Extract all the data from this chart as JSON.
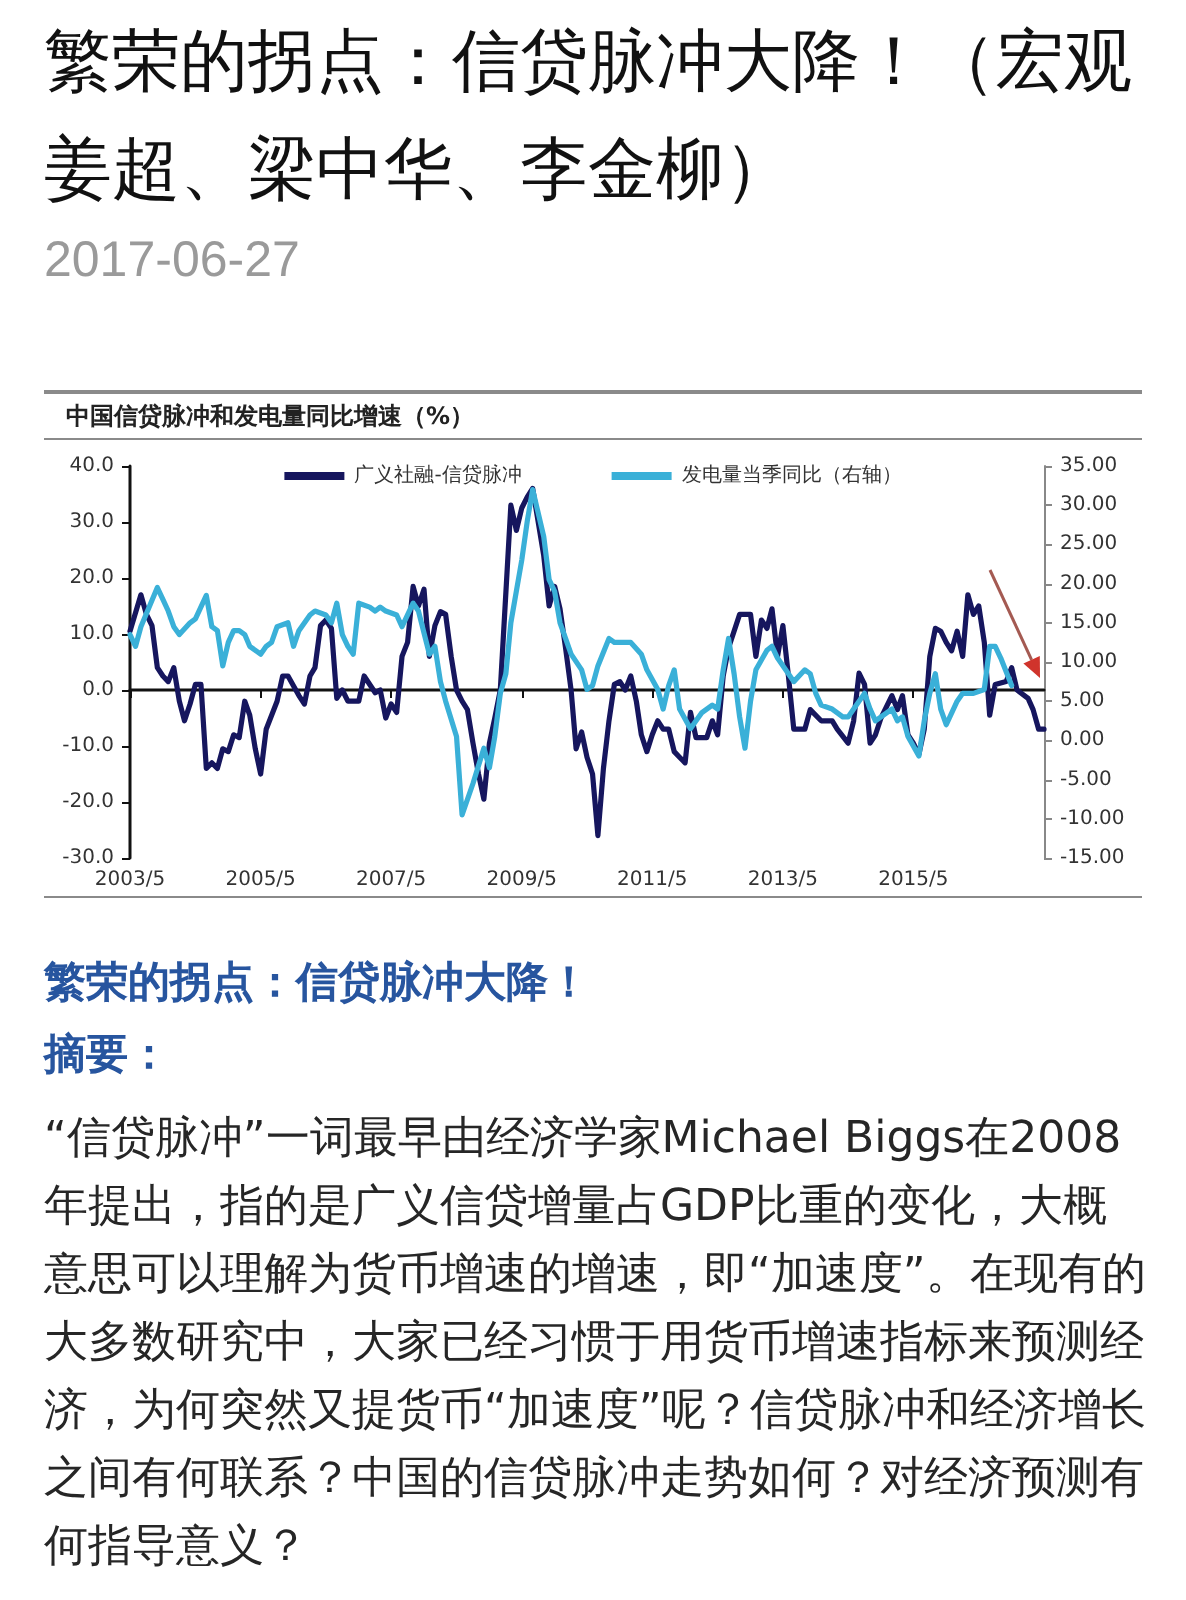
{
  "chart_data": {
    "type": "line",
    "title": "中国信贷脉冲和发电量同比增速（%）",
    "annotations": [
      "繁荣的拐点：信贷脉冲大降！（宏观姜超、梁中华、李金柳）",
      "2017-06-27",
      "繁荣的拐点：信贷脉冲大降！",
      "摘要：",
      "“信贷脉冲”一词最早由经济学家Michael Biggs在2008年提出，指的是广义信贷增量占GDP比重的变化，大概意思可以理解为货币增速的增速，即“加速度”。在现有的大多数研究中，大家已经习惯于用货币增速指标来预测经济，为何突然又提货币“加速度”呢？信贷脉冲和经济增长之间有何联系？中国的信贷脉冲走势如何？对经济预测有何指导意义？"
    ],
    "xlim": [
      "2003-05",
      "2017-05"
    ],
    "xticks": [
      {
        "value": "2003-05",
        "label": "2003/5"
      },
      {
        "value": "2005-05",
        "label": "2005/5"
      },
      {
        "value": "2007-05",
        "label": "2007/5"
      },
      {
        "value": "2009-05",
        "label": "2009/5"
      },
      {
        "value": "2011-05",
        "label": "2011/5"
      },
      {
        "value": "2013-05",
        "label": "2013/5"
      },
      {
        "value": "2015-05",
        "label": "2015/5"
      }
    ],
    "ylim": [
      -30,
      40
    ],
    "yticks": [
      {
        "value": -30,
        "label": "-30.0"
      },
      {
        "value": -20,
        "label": "-20.0"
      },
      {
        "value": -10,
        "label": "-10.0"
      },
      {
        "value": 0,
        "label": "0.0"
      },
      {
        "value": 10,
        "label": "10.0"
      },
      {
        "value": 20,
        "label": "20.0"
      },
      {
        "value": 30,
        "label": "30.0"
      },
      {
        "value": 40,
        "label": "40.0"
      }
    ],
    "y2lim": [
      -15,
      35
    ],
    "y2ticks": [
      {
        "value": -15,
        "label": "-15.00"
      },
      {
        "value": -10,
        "label": "-10.00"
      },
      {
        "value": -5,
        "label": "-5.00"
      },
      {
        "value": 0,
        "label": "0.00"
      },
      {
        "value": 5,
        "label": "5.00"
      },
      {
        "value": 10,
        "label": "10.00"
      },
      {
        "value": 15,
        "label": "15.00"
      },
      {
        "value": 20,
        "label": "20.00"
      },
      {
        "value": 25,
        "label": "25.00"
      },
      {
        "value": 30,
        "label": "30.00"
      },
      {
        "value": 35,
        "label": "35.00"
      }
    ],
    "legend": "top",
    "marker": "none",
    "line_style": "solid",
    "series": [
      {
        "name": "广义社融-信贷脉冲",
        "color": "#16165e",
        "x": [
          "2003-05",
          "2003-07",
          "2003-08",
          "2003-09",
          "2003-10",
          "2003-11",
          "2003-12",
          "2004-01",
          "2004-02",
          "2004-03",
          "2004-04",
          "2004-05",
          "2004-06",
          "2004-07",
          "2004-08",
          "2004-09",
          "2004-10",
          "2004-11",
          "2004-12",
          "2005-01",
          "2005-02",
          "2005-03",
          "2005-04",
          "2005-05",
          "2005-06",
          "2005-08",
          "2005-09",
          "2005-10",
          "2005-12",
          "2006-01",
          "2006-02",
          "2006-03",
          "2006-04",
          "2006-05",
          "2006-06",
          "2006-07",
          "2006-08",
          "2006-09",
          "2006-11",
          "2006-12",
          "2007-02",
          "2007-03",
          "2007-04",
          "2007-05",
          "2007-06",
          "2007-07",
          "2007-08",
          "2007-09",
          "2007-10",
          "2007-11",
          "2007-12",
          "2008-01",
          "2008-02",
          "2008-03",
          "2008-04",
          "2008-05",
          "2008-06",
          "2008-07",
          "2008-08",
          "2008-09",
          "2008-10",
          "2008-11",
          "2008-12",
          "2009-01",
          "2009-03",
          "2009-04",
          "2009-05",
          "2009-06",
          "2009-07",
          "2009-09",
          "2009-10",
          "2009-11",
          "2009-12",
          "2010-01",
          "2010-02",
          "2010-03",
          "2010-04",
          "2010-05",
          "2010-06",
          "2010-07",
          "2010-08",
          "2010-09",
          "2010-10",
          "2010-11",
          "2010-12",
          "2011-01",
          "2011-02",
          "2011-03",
          "2011-04",
          "2011-05",
          "2011-06",
          "2011-07",
          "2011-08",
          "2011-09",
          "2011-10",
          "2011-11",
          "2011-12",
          "2012-01",
          "2012-03",
          "2012-04",
          "2012-05",
          "2012-06",
          "2012-07",
          "2012-09",
          "2012-11",
          "2012-12",
          "2013-01",
          "2013-02",
          "2013-03",
          "2013-04",
          "2013-05",
          "2013-06",
          "2013-07",
          "2013-09",
          "2013-10",
          "2013-12",
          "2014-02",
          "2014-03",
          "2014-05",
          "2014-06",
          "2014-07",
          "2014-08",
          "2014-09",
          "2014-10",
          "2014-11",
          "2015-01",
          "2015-02",
          "2015-03",
          "2015-04",
          "2015-05",
          "2015-06",
          "2015-07",
          "2015-08",
          "2015-09",
          "2015-10",
          "2015-11",
          "2015-12",
          "2016-01",
          "2016-02",
          "2016-03",
          "2016-04",
          "2016-05",
          "2016-06",
          "2016-07",
          "2016-08",
          "2016-10",
          "2016-11",
          "2016-12",
          "2017-02",
          "2017-03",
          "2017-04",
          "2017-05"
        ],
        "values": [
          10.5,
          17,
          13.5,
          11.5,
          4,
          2.5,
          1.5,
          4,
          -2,
          -5.5,
          -2.5,
          1,
          1,
          -14,
          -13,
          -14,
          -10.5,
          -11,
          -8,
          -8.5,
          -2,
          -4.5,
          -10.5,
          -15,
          -7,
          -2,
          2.5,
          2.5,
          -1,
          -2.5,
          2.5,
          4,
          11.5,
          12.5,
          11,
          -1.5,
          0,
          -2,
          -2,
          2.5,
          -0.5,
          0,
          -5,
          -2.5,
          -4,
          6,
          8.5,
          18.5,
          15,
          18,
          6,
          11.5,
          14,
          13.5,
          6,
          0,
          -2,
          -3.5,
          -9.5,
          -15,
          -19.5,
          -9.5,
          -5,
          0,
          33,
          28.5,
          32.5,
          34.5,
          36,
          24,
          15,
          18.5,
          14.5,
          7.5,
          0,
          -10.5,
          -7.5,
          -12,
          -15,
          -26,
          -14,
          -5.5,
          1,
          1.5,
          0,
          2.5,
          -2,
          -8,
          -11,
          -8,
          -5.5,
          -7,
          -7,
          -11,
          -12,
          -13,
          -4,
          -8.5,
          -8.5,
          -5.5,
          -8,
          2.5,
          7.5,
          13.5,
          13.5,
          6,
          12.5,
          11,
          14.5,
          6,
          11.5,
          2.5,
          -7,
          -7,
          -3.5,
          -5.5,
          -5.5,
          -7,
          -9.5,
          -5.5,
          3,
          1,
          -9.5,
          -8,
          -5,
          -1,
          -3.5,
          -1,
          -8,
          -9.5,
          -11.5,
          -7,
          6,
          11,
          10.5,
          8.5,
          7,
          10.5,
          6,
          17,
          13.5,
          15,
          8.5,
          -4.5,
          1,
          1.5,
          4,
          0,
          -1.5,
          -3.5,
          -7,
          -7
        ]
      },
      {
        "name": "发电量当季同比（右轴）",
        "color": "#3ab0d8",
        "axis": "y2",
        "x": [
          "2003-05",
          "2003-06",
          "2003-07",
          "2003-10",
          "2003-11",
          "2003-12",
          "2004-01",
          "2004-02",
          "2004-04",
          "2004-05",
          "2004-07",
          "2004-08",
          "2004-09",
          "2004-10",
          "2004-11",
          "2004-12",
          "2005-01",
          "2005-02",
          "2005-03",
          "2005-05",
          "2005-06",
          "2005-07",
          "2005-08",
          "2005-10",
          "2005-11",
          "2005-12",
          "2006-02",
          "2006-03",
          "2006-05",
          "2006-06",
          "2006-07",
          "2006-08",
          "2006-09",
          "2006-10",
          "2006-11",
          "2007-01",
          "2007-02",
          "2007-03",
          "2007-04",
          "2007-06",
          "2007-07",
          "2007-08",
          "2007-09",
          "2007-10",
          "2007-12",
          "2008-01",
          "2008-02",
          "2008-03",
          "2008-05",
          "2008-06",
          "2008-08",
          "2008-10",
          "2008-11",
          "2008-12",
          "2009-01",
          "2009-02",
          "2009-03",
          "2009-05",
          "2009-06",
          "2009-07",
          "2009-09",
          "2009-10",
          "2009-11",
          "2009-12",
          "2010-01",
          "2010-02",
          "2010-04",
          "2010-05",
          "2010-06",
          "2010-07",
          "2010-09",
          "2010-10",
          "2010-11",
          "2011-01",
          "2011-03",
          "2011-04",
          "2011-06",
          "2011-07",
          "2011-08",
          "2011-09",
          "2011-10",
          "2011-12",
          "2012-01",
          "2012-02",
          "2012-04",
          "2012-05",
          "2012-06",
          "2012-07",
          "2012-08",
          "2012-09",
          "2012-10",
          "2012-11",
          "2012-12",
          "2013-02",
          "2013-03",
          "2013-04",
          "2013-06",
          "2013-07",
          "2013-09",
          "2013-10",
          "2013-11",
          "2013-12",
          "2014-02",
          "2014-04",
          "2014-05",
          "2014-06",
          "2014-08",
          "2014-09",
          "2014-10",
          "2014-11",
          "2015-01",
          "2015-02",
          "2015-03",
          "2015-04",
          "2015-06",
          "2015-07",
          "2015-08",
          "2015-09",
          "2015-10",
          "2015-11",
          "2016-01",
          "2016-02",
          "2016-04",
          "2016-06",
          "2016-07",
          "2016-08",
          "2016-09",
          "2016-11"
        ],
        "values": [
          13.5,
          12,
          14.5,
          19.5,
          18,
          16.5,
          14.5,
          13.5,
          15,
          15.5,
          18.5,
          14.5,
          14,
          9.5,
          12.5,
          14,
          14,
          13.5,
          12,
          11,
          12,
          12.5,
          14.5,
          15,
          12,
          14,
          16,
          16.5,
          16,
          15,
          17.5,
          13.5,
          12,
          11,
          17.5,
          17,
          16.5,
          17,
          16.5,
          16,
          14.5,
          16,
          17.5,
          16.5,
          11,
          12,
          7.5,
          5,
          0.5,
          -9.5,
          -5.5,
          -1,
          -3.5,
          0.5,
          6,
          8.5,
          15,
          23,
          28,
          32,
          26,
          20.5,
          19,
          15,
          13,
          11,
          9,
          6.5,
          7,
          9.5,
          13,
          12.5,
          12.5,
          12.5,
          11,
          9,
          6.5,
          4,
          7,
          9,
          4,
          1.5,
          2.5,
          3.5,
          4.5,
          4,
          9,
          13,
          8.5,
          3,
          -1,
          5,
          9,
          11.5,
          12,
          10.5,
          8.5,
          7.5,
          9,
          8.5,
          6,
          4.5,
          4,
          3,
          3,
          4,
          6,
          4,
          2.5,
          3,
          4,
          2.5,
          3,
          0.5,
          -2,
          2.5,
          6,
          8.5,
          4,
          2,
          5,
          6,
          6,
          6.5,
          12,
          12,
          10.5,
          7
        ]
      }
    ]
  }
}
